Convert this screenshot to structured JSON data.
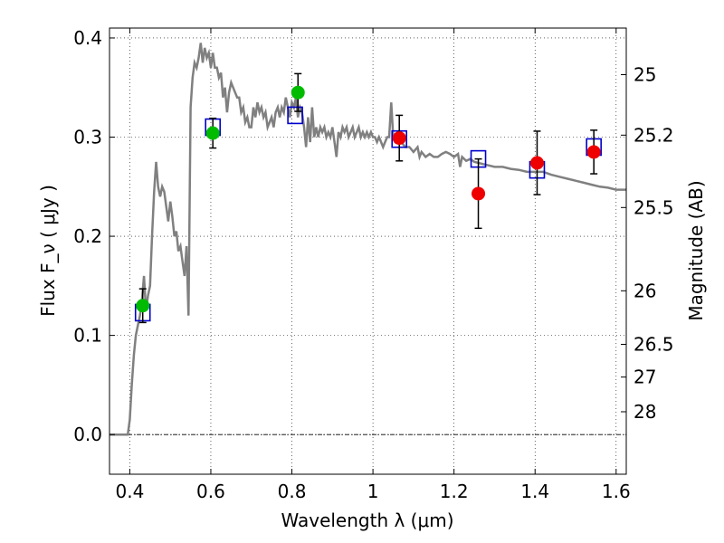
{
  "chart_data": {
    "type": "scatter",
    "xlabel": "Wavelength  λ (μm)",
    "ylabel": "Flux  F_ν  ( μJy )",
    "ylabel_right": "Magnitude (AB)",
    "xlim": [
      0.35,
      1.625
    ],
    "ylim": [
      -0.04,
      0.41
    ],
    "grid": true,
    "x_ticks": [
      0.4,
      0.6,
      0.8,
      1.0,
      1.2,
      1.4,
      1.6
    ],
    "x_tick_labels": [
      "0.4",
      "0.6",
      "0.8",
      "1",
      "1.2",
      "1.4",
      "1.6"
    ],
    "y_ticks": [
      0.0,
      0.1,
      0.2,
      0.3,
      0.4
    ],
    "y_tick_labels": [
      "0.0",
      "0.1",
      "0.2",
      "0.3",
      "0.4"
    ],
    "right_ticks": [
      {
        "label": "25",
        "flux": 0.363
      },
      {
        "label": "25.2",
        "flux": 0.302
      },
      {
        "label": "25.5",
        "flux": 0.229
      },
      {
        "label": "26",
        "flux": 0.145
      },
      {
        "label": "26.5",
        "flux": 0.091
      },
      {
        "label": "27",
        "flux": 0.058
      },
      {
        "label": "28",
        "flux": 0.023
      }
    ],
    "colors": {
      "model": "#808080",
      "model_points": "#0000cc",
      "green_points": "#00bb00",
      "red_points": "#ee0000",
      "errorbar": "#000000"
    },
    "series": [
      {
        "kind": "line",
        "points": [
          [
            0.35,
            0.0
          ],
          [
            0.395,
            0.0
          ],
          [
            0.4,
            0.015
          ],
          [
            0.405,
            0.05
          ],
          [
            0.41,
            0.08
          ],
          [
            0.415,
            0.1
          ],
          [
            0.42,
            0.11
          ],
          [
            0.425,
            0.12
          ],
          [
            0.43,
            0.135
          ],
          [
            0.435,
            0.16
          ],
          [
            0.44,
            0.125
          ],
          [
            0.445,
            0.14
          ],
          [
            0.45,
            0.15
          ],
          [
            0.455,
            0.2
          ],
          [
            0.46,
            0.245
          ],
          [
            0.465,
            0.275
          ],
          [
            0.47,
            0.25
          ],
          [
            0.475,
            0.24
          ],
          [
            0.48,
            0.25
          ],
          [
            0.485,
            0.245
          ],
          [
            0.49,
            0.23
          ],
          [
            0.495,
            0.215
          ],
          [
            0.5,
            0.235
          ],
          [
            0.505,
            0.22
          ],
          [
            0.51,
            0.2
          ],
          [
            0.515,
            0.205
          ],
          [
            0.52,
            0.185
          ],
          [
            0.525,
            0.19
          ],
          [
            0.53,
            0.175
          ],
          [
            0.535,
            0.16
          ],
          [
            0.54,
            0.19
          ],
          [
            0.545,
            0.12
          ],
          [
            0.55,
            0.33
          ],
          [
            0.555,
            0.36
          ],
          [
            0.56,
            0.375
          ],
          [
            0.565,
            0.37
          ],
          [
            0.57,
            0.38
          ],
          [
            0.575,
            0.395
          ],
          [
            0.58,
            0.375
          ],
          [
            0.585,
            0.39
          ],
          [
            0.59,
            0.38
          ],
          [
            0.595,
            0.385
          ],
          [
            0.6,
            0.37
          ],
          [
            0.605,
            0.385
          ],
          [
            0.61,
            0.37
          ],
          [
            0.615,
            0.37
          ],
          [
            0.62,
            0.36
          ],
          [
            0.625,
            0.365
          ],
          [
            0.63,
            0.34
          ],
          [
            0.635,
            0.35
          ],
          [
            0.64,
            0.325
          ],
          [
            0.645,
            0.345
          ],
          [
            0.65,
            0.355
          ],
          [
            0.655,
            0.35
          ],
          [
            0.66,
            0.345
          ],
          [
            0.665,
            0.34
          ],
          [
            0.67,
            0.34
          ],
          [
            0.675,
            0.325
          ],
          [
            0.68,
            0.33
          ],
          [
            0.685,
            0.315
          ],
          [
            0.69,
            0.32
          ],
          [
            0.695,
            0.31
          ],
          [
            0.7,
            0.31
          ],
          [
            0.705,
            0.33
          ],
          [
            0.71,
            0.32
          ],
          [
            0.715,
            0.335
          ],
          [
            0.72,
            0.325
          ],
          [
            0.725,
            0.33
          ],
          [
            0.73,
            0.32
          ],
          [
            0.735,
            0.325
          ],
          [
            0.74,
            0.31
          ],
          [
            0.745,
            0.315
          ],
          [
            0.75,
            0.32
          ],
          [
            0.755,
            0.31
          ],
          [
            0.76,
            0.325
          ],
          [
            0.765,
            0.33
          ],
          [
            0.77,
            0.32
          ],
          [
            0.775,
            0.33
          ],
          [
            0.78,
            0.325
          ],
          [
            0.785,
            0.34
          ],
          [
            0.79,
            0.33
          ],
          [
            0.795,
            0.32
          ],
          [
            0.8,
            0.335
          ],
          [
            0.805,
            0.33
          ],
          [
            0.81,
            0.34
          ],
          [
            0.815,
            0.32
          ],
          [
            0.82,
            0.33
          ],
          [
            0.825,
            0.325
          ],
          [
            0.83,
            0.31
          ],
          [
            0.835,
            0.29
          ],
          [
            0.84,
            0.32
          ],
          [
            0.845,
            0.295
          ],
          [
            0.85,
            0.33
          ],
          [
            0.855,
            0.3
          ],
          [
            0.86,
            0.31
          ],
          [
            0.865,
            0.3
          ],
          [
            0.87,
            0.31
          ],
          [
            0.875,
            0.305
          ],
          [
            0.88,
            0.31
          ],
          [
            0.885,
            0.3
          ],
          [
            0.89,
            0.305
          ],
          [
            0.895,
            0.3
          ],
          [
            0.9,
            0.31
          ],
          [
            0.905,
            0.295
          ],
          [
            0.91,
            0.28
          ],
          [
            0.915,
            0.305
          ],
          [
            0.92,
            0.3
          ],
          [
            0.925,
            0.31
          ],
          [
            0.93,
            0.305
          ],
          [
            0.935,
            0.31
          ],
          [
            0.94,
            0.3
          ],
          [
            0.945,
            0.305
          ],
          [
            0.95,
            0.31
          ],
          [
            0.955,
            0.3
          ],
          [
            0.96,
            0.305
          ],
          [
            0.965,
            0.31
          ],
          [
            0.97,
            0.3
          ],
          [
            0.975,
            0.305
          ],
          [
            0.98,
            0.3
          ],
          [
            0.985,
            0.305
          ],
          [
            0.99,
            0.3
          ],
          [
            0.995,
            0.305
          ],
          [
            1.0,
            0.3
          ],
          [
            1.005,
            0.3
          ],
          [
            1.01,
            0.295
          ],
          [
            1.015,
            0.3
          ],
          [
            1.02,
            0.295
          ],
          [
            1.025,
            0.29
          ],
          [
            1.03,
            0.295
          ],
          [
            1.035,
            0.3
          ],
          [
            1.04,
            0.3
          ],
          [
            1.045,
            0.335
          ],
          [
            1.05,
            0.3
          ],
          [
            1.055,
            0.295
          ],
          [
            1.06,
            0.295
          ],
          [
            1.07,
            0.295
          ],
          [
            1.08,
            0.29
          ],
          [
            1.09,
            0.29
          ],
          [
            1.1,
            0.285
          ],
          [
            1.11,
            0.29
          ],
          [
            1.115,
            0.28
          ],
          [
            1.12,
            0.285
          ],
          [
            1.13,
            0.28
          ],
          [
            1.14,
            0.283
          ],
          [
            1.15,
            0.28
          ],
          [
            1.16,
            0.28
          ],
          [
            1.17,
            0.283
          ],
          [
            1.18,
            0.285
          ],
          [
            1.19,
            0.283
          ],
          [
            1.2,
            0.28
          ],
          [
            1.21,
            0.283
          ],
          [
            1.215,
            0.27
          ],
          [
            1.22,
            0.28
          ],
          [
            1.23,
            0.276
          ],
          [
            1.24,
            0.278
          ],
          [
            1.25,
            0.275
          ],
          [
            1.26,
            0.274
          ],
          [
            1.28,
            0.272
          ],
          [
            1.3,
            0.27
          ],
          [
            1.32,
            0.27
          ],
          [
            1.34,
            0.268
          ],
          [
            1.36,
            0.267
          ],
          [
            1.38,
            0.265
          ],
          [
            1.4,
            0.265
          ],
          [
            1.42,
            0.265
          ],
          [
            1.44,
            0.262
          ],
          [
            1.46,
            0.26
          ],
          [
            1.48,
            0.258
          ],
          [
            1.5,
            0.256
          ],
          [
            1.52,
            0.254
          ],
          [
            1.54,
            0.252
          ],
          [
            1.56,
            0.25
          ],
          [
            1.58,
            0.249
          ],
          [
            1.6,
            0.247
          ],
          [
            1.625,
            0.247
          ]
        ]
      },
      {
        "kind": "open-squares",
        "points": [
          [
            0.432,
            0.123
          ],
          [
            0.605,
            0.31
          ],
          [
            0.808,
            0.322
          ],
          [
            1.065,
            0.298
          ],
          [
            1.26,
            0.278
          ],
          [
            1.405,
            0.267
          ],
          [
            1.545,
            0.29
          ]
        ]
      },
      {
        "kind": "green-points-with-errors",
        "points": [
          {
            "x": 0.432,
            "y": 0.13,
            "err": 0.017
          },
          {
            "x": 0.605,
            "y": 0.304,
            "err": 0.015
          },
          {
            "x": 0.815,
            "y": 0.345,
            "err": 0.019
          }
        ]
      },
      {
        "kind": "red-points-with-errors",
        "points": [
          {
            "x": 1.065,
            "y": 0.299,
            "err": 0.023
          },
          {
            "x": 1.26,
            "y": 0.243,
            "err": 0.035
          },
          {
            "x": 1.405,
            "y": 0.274,
            "err": 0.032
          },
          {
            "x": 1.545,
            "y": 0.285,
            "err": 0.022
          }
        ]
      }
    ]
  }
}
